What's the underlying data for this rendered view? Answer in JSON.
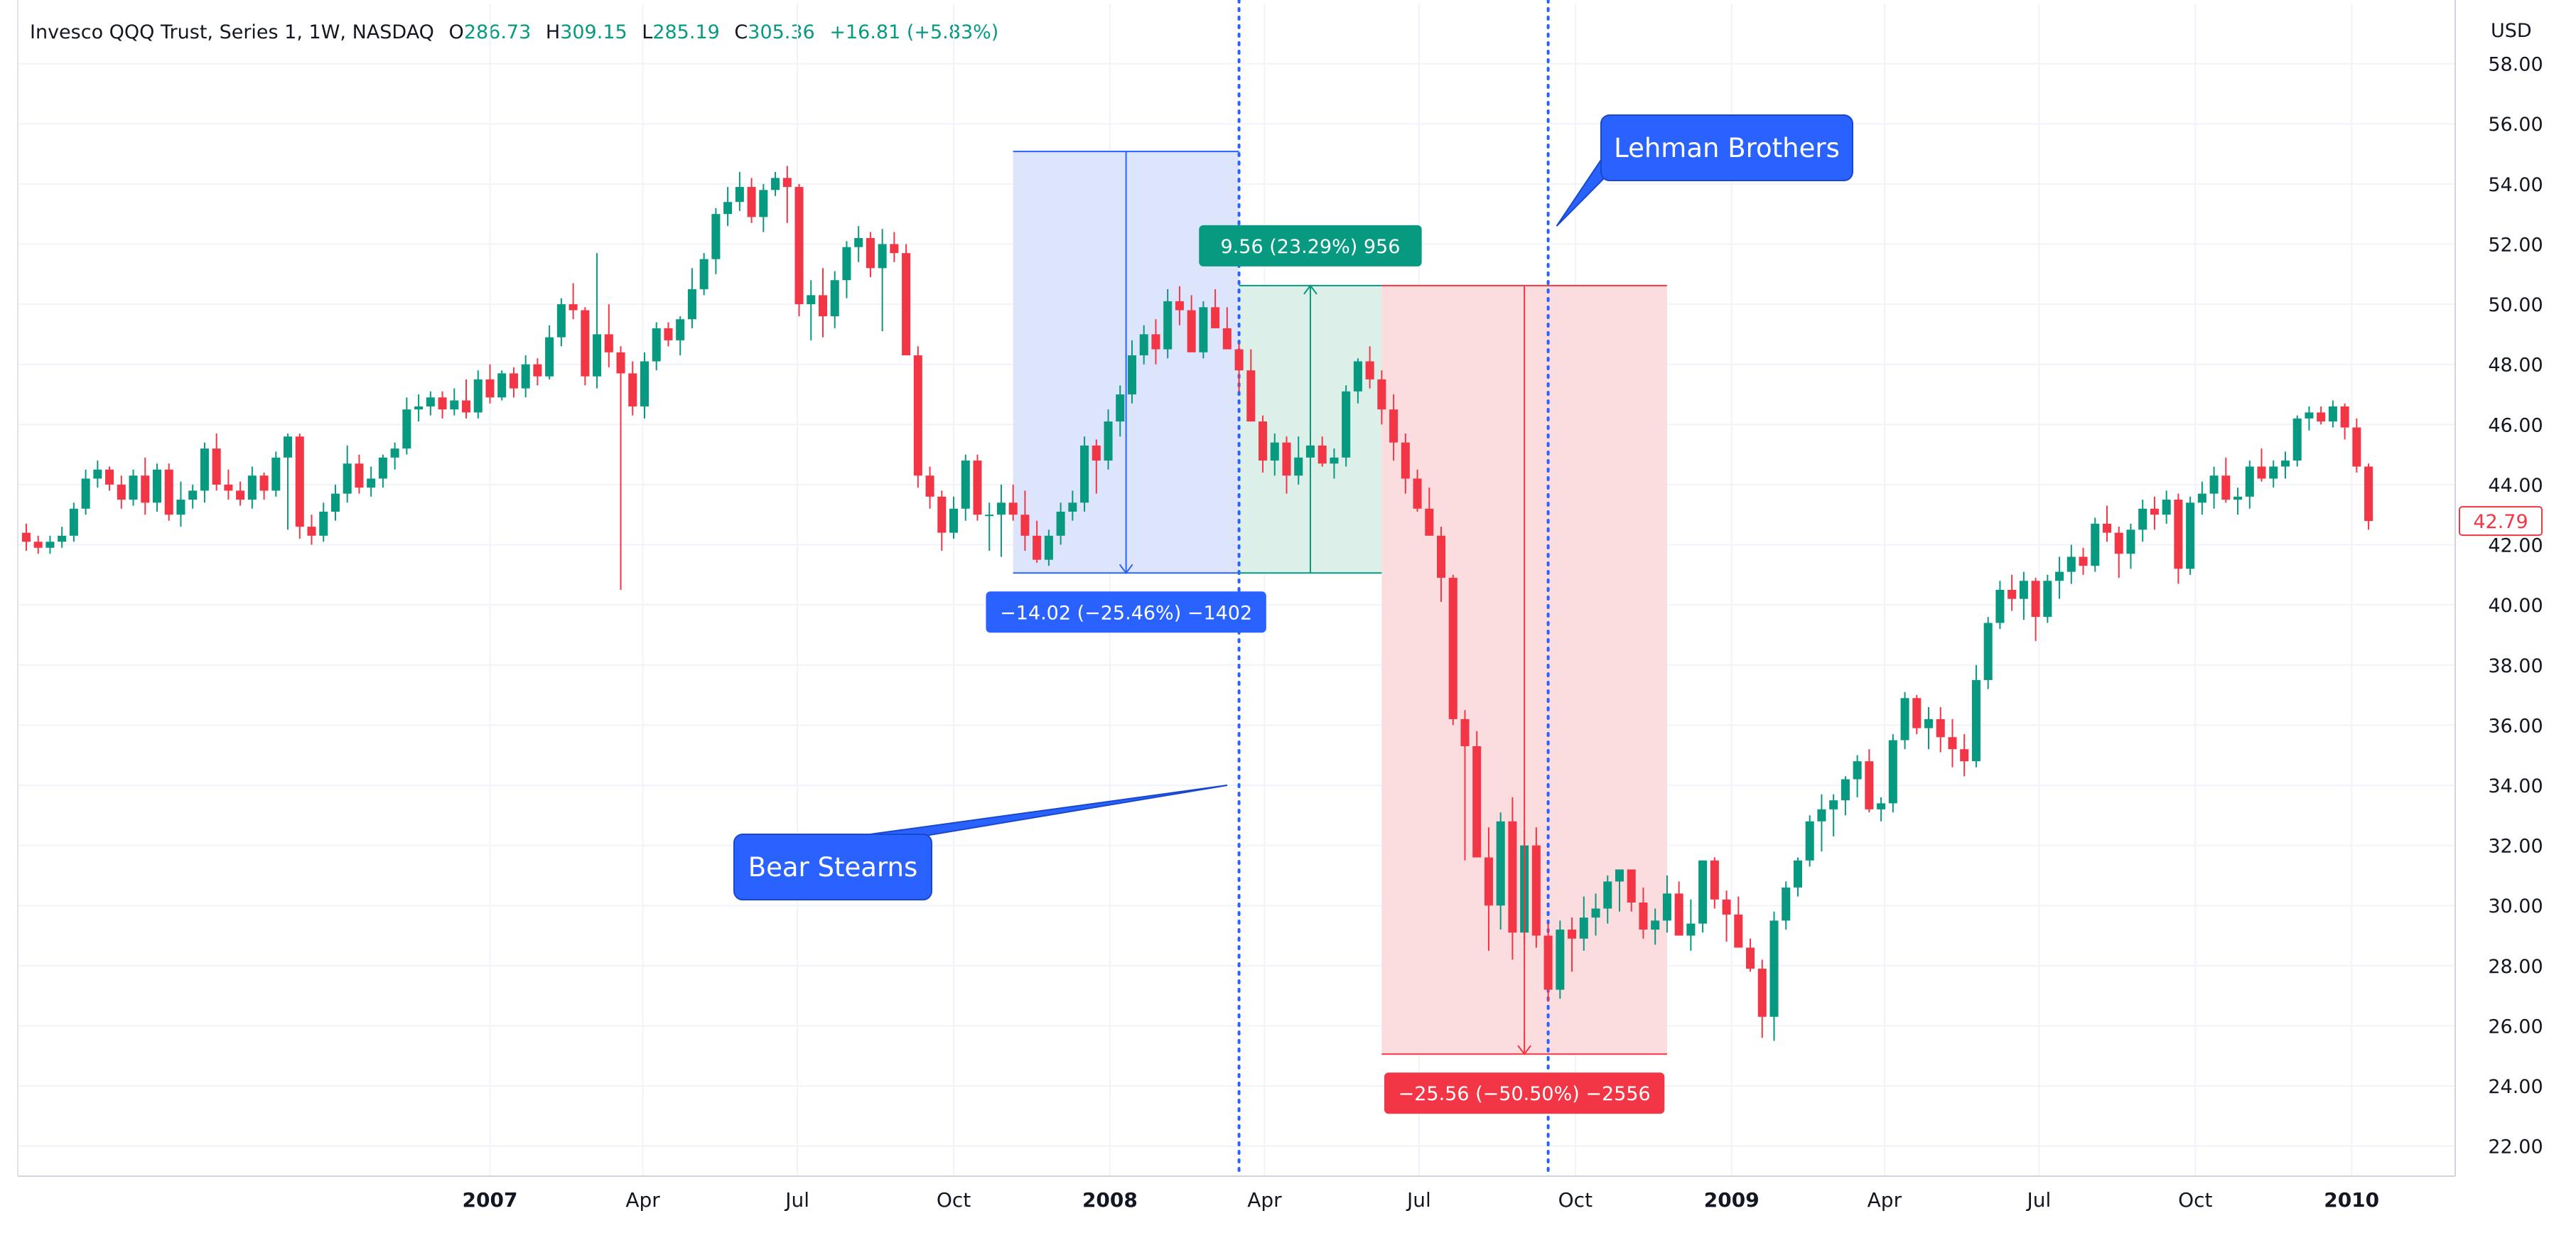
{
  "header": {
    "symbol": "Invesco QQQ Trust, Series 1, 1W, NASDAQ",
    "o_label": "O",
    "o_value": "286.73",
    "h_label": "H",
    "h_value": "309.15",
    "l_label": "L",
    "l_value": "285.19",
    "c_label": "C",
    "c_value": "305.36",
    "change": "+16.81 (+5.83%)"
  },
  "colors": {
    "up": "#089981",
    "down": "#f23645",
    "blue": "#2962ff",
    "blue_fill": "#dde5fd",
    "green_fill": "#dcefe9",
    "red_fill": "#fbdde0",
    "grid": "#f0f3fa",
    "text": "#131722"
  },
  "chart_data": {
    "type": "candlestick",
    "currency": "USD",
    "ylim": [
      21.0,
      60.0
    ],
    "y_ticks": [
      "22.00",
      "24.00",
      "26.00",
      "28.00",
      "30.00",
      "32.00",
      "34.00",
      "36.00",
      "38.00",
      "40.00",
      "42.00",
      "44.00",
      "46.00",
      "48.00",
      "50.00",
      "52.00",
      "54.00",
      "56.00",
      "58.00"
    ],
    "x_ticks": [
      {
        "label": "2007",
        "date": "2007-01-01",
        "bold": true
      },
      {
        "label": "Apr",
        "date": "2007-04-01",
        "bold": false
      },
      {
        "label": "Jul",
        "date": "2007-07-01",
        "bold": false
      },
      {
        "label": "Oct",
        "date": "2007-10-01",
        "bold": false
      },
      {
        "label": "2008",
        "date": "2008-01-01",
        "bold": true
      },
      {
        "label": "Apr",
        "date": "2008-04-01",
        "bold": false
      },
      {
        "label": "Jul",
        "date": "2008-07-01",
        "bold": false
      },
      {
        "label": "Oct",
        "date": "2008-10-01",
        "bold": false
      },
      {
        "label": "2009",
        "date": "2009-01-01",
        "bold": true
      },
      {
        "label": "Apr",
        "date": "2009-04-01",
        "bold": false
      },
      {
        "label": "Jul",
        "date": "2009-07-01",
        "bold": false
      },
      {
        "label": "Oct",
        "date": "2009-10-01",
        "bold": false
      },
      {
        "label": "2010",
        "date": "2010-01-01",
        "bold": true
      }
    ],
    "x_range": [
      "2006-03-29",
      "2010-03-03"
    ],
    "last_price": "42.79",
    "weekly_candles_approx_OHLC": [
      [
        42.4,
        42.7,
        41.8,
        42.1
      ],
      [
        42.1,
        42.3,
        41.7,
        41.9
      ],
      [
        41.9,
        42.3,
        41.7,
        42.1
      ],
      [
        42.1,
        42.6,
        41.9,
        42.3
      ],
      [
        42.3,
        43.4,
        42.1,
        43.2
      ],
      [
        43.2,
        44.5,
        43.0,
        44.2
      ],
      [
        44.2,
        44.8,
        43.9,
        44.5
      ],
      [
        44.5,
        44.6,
        43.8,
        44.0
      ],
      [
        44.0,
        44.3,
        43.2,
        43.5
      ],
      [
        43.5,
        44.5,
        43.3,
        44.3
      ],
      [
        44.3,
        44.9,
        43.0,
        43.4
      ],
      [
        43.4,
        44.7,
        43.1,
        44.5
      ],
      [
        44.5,
        44.7,
        42.8,
        43.0
      ],
      [
        43.0,
        44.1,
        42.6,
        43.5
      ],
      [
        43.5,
        44.0,
        43.2,
        43.8
      ],
      [
        43.8,
        45.4,
        43.4,
        45.2
      ],
      [
        45.2,
        45.7,
        43.8,
        44.0
      ],
      [
        44.0,
        44.5,
        43.5,
        43.8
      ],
      [
        43.8,
        44.1,
        43.3,
        43.5
      ],
      [
        43.5,
        44.6,
        43.2,
        44.3
      ],
      [
        44.3,
        44.4,
        43.5,
        43.8
      ],
      [
        43.8,
        45.1,
        43.6,
        44.9
      ],
      [
        44.9,
        45.7,
        42.5,
        45.6
      ],
      [
        45.6,
        45.7,
        42.2,
        42.6
      ],
      [
        42.6,
        43.0,
        42.0,
        42.3
      ],
      [
        42.3,
        43.4,
        42.1,
        43.1
      ],
      [
        43.1,
        44.0,
        42.8,
        43.7
      ],
      [
        43.7,
        45.3,
        43.4,
        44.7
      ],
      [
        44.7,
        45.0,
        43.7,
        43.9
      ],
      [
        43.9,
        44.6,
        43.6,
        44.2
      ],
      [
        44.2,
        45.0,
        43.9,
        44.9
      ],
      [
        44.9,
        45.4,
        44.5,
        45.2
      ],
      [
        45.2,
        46.9,
        45.0,
        46.5
      ],
      [
        46.5,
        47.0,
        46.1,
        46.6
      ],
      [
        46.6,
        47.1,
        46.3,
        46.9
      ],
      [
        46.9,
        47.1,
        46.2,
        46.5
      ],
      [
        46.5,
        47.2,
        46.3,
        46.8
      ],
      [
        46.8,
        47.5,
        46.2,
        46.4
      ],
      [
        46.4,
        47.8,
        46.2,
        47.5
      ],
      [
        47.5,
        48.0,
        46.7,
        46.9
      ],
      [
        46.9,
        47.8,
        46.8,
        47.7
      ],
      [
        47.7,
        47.9,
        46.9,
        47.2
      ],
      [
        47.2,
        48.3,
        46.9,
        48.0
      ],
      [
        48.0,
        48.2,
        47.3,
        47.6
      ],
      [
        47.6,
        49.3,
        47.5,
        48.9
      ],
      [
        48.9,
        50.2,
        48.6,
        50.0
      ],
      [
        50.0,
        50.7,
        49.5,
        49.8
      ],
      [
        49.8,
        49.9,
        47.3,
        47.6
      ],
      [
        47.6,
        51.7,
        47.2,
        49.0
      ],
      [
        49.0,
        50.0,
        47.9,
        48.4
      ],
      [
        48.4,
        48.6,
        40.5,
        47.7
      ],
      [
        47.7,
        48.1,
        46.3,
        46.6
      ],
      [
        46.6,
        48.4,
        46.2,
        48.1
      ],
      [
        48.1,
        49.4,
        47.8,
        49.2
      ],
      [
        49.2,
        49.4,
        48.6,
        48.8
      ],
      [
        48.8,
        49.6,
        48.3,
        49.5
      ],
      [
        49.5,
        51.2,
        49.2,
        50.5
      ],
      [
        50.5,
        51.7,
        50.3,
        51.5
      ],
      [
        51.5,
        53.2,
        51.0,
        53.0
      ],
      [
        53.0,
        53.9,
        52.6,
        53.4
      ],
      [
        53.4,
        54.4,
        53.1,
        53.9
      ],
      [
        53.9,
        54.2,
        52.7,
        52.9
      ],
      [
        52.9,
        54.0,
        52.4,
        53.8
      ],
      [
        53.8,
        54.4,
        53.6,
        54.2
      ],
      [
        54.2,
        54.6,
        52.7,
        53.9
      ],
      [
        53.9,
        54.0,
        49.6,
        50.0
      ],
      [
        50.0,
        50.8,
        48.8,
        50.3
      ],
      [
        50.3,
        51.2,
        48.9,
        49.6
      ],
      [
        49.6,
        51.1,
        49.2,
        50.8
      ],
      [
        50.8,
        52.1,
        50.2,
        51.9
      ],
      [
        51.9,
        52.6,
        51.4,
        52.2
      ],
      [
        52.2,
        52.4,
        50.9,
        51.2
      ],
      [
        51.2,
        52.5,
        49.1,
        52.0
      ],
      [
        52.0,
        52.4,
        51.4,
        51.7
      ],
      [
        51.7,
        52.0,
        49.2,
        48.3
      ],
      [
        48.3,
        48.6,
        43.9,
        44.3
      ],
      [
        44.3,
        44.6,
        43.2,
        43.6
      ],
      [
        43.6,
        43.8,
        41.8,
        42.4
      ],
      [
        42.4,
        43.6,
        42.2,
        43.2
      ],
      [
        43.2,
        45.0,
        42.8,
        44.8
      ],
      [
        44.8,
        45.0,
        42.8,
        43.0
      ],
      [
        43.0,
        43.4,
        41.8,
        43.0
      ],
      [
        43.0,
        44.0,
        41.6,
        43.4
      ],
      [
        43.4,
        44.0,
        42.8,
        43.0
      ],
      [
        43.0,
        43.8,
        41.8,
        42.3
      ],
      [
        42.3,
        42.8,
        41.4,
        41.5
      ],
      [
        41.5,
        42.5,
        41.3,
        42.3
      ],
      [
        42.3,
        43.4,
        42.0,
        43.1
      ],
      [
        43.1,
        43.8,
        42.8,
        43.4
      ],
      [
        43.4,
        45.6,
        43.1,
        45.3
      ],
      [
        45.3,
        45.5,
        43.7,
        44.8
      ],
      [
        44.8,
        46.5,
        44.5,
        46.1
      ],
      [
        46.1,
        47.3,
        45.6,
        47.0
      ],
      [
        47.0,
        48.8,
        46.7,
        48.3
      ],
      [
        48.3,
        49.3,
        48.0,
        49.0
      ],
      [
        49.0,
        49.5,
        48.0,
        48.5
      ],
      [
        48.5,
        50.5,
        48.2,
        50.1
      ],
      [
        50.1,
        50.6,
        49.3,
        49.8
      ],
      [
        49.8,
        50.3,
        48.6,
        48.4
      ],
      [
        48.4,
        50.1,
        48.2,
        49.9
      ],
      [
        49.9,
        50.5,
        49.2,
        49.2
      ],
      [
        49.2,
        49.9,
        48.8,
        48.5
      ],
      [
        48.5,
        48.7,
        47.1,
        47.8
      ],
      [
        47.8,
        48.5,
        46.3,
        46.1
      ],
      [
        46.1,
        46.3,
        44.4,
        44.8
      ],
      [
        44.8,
        45.7,
        44.3,
        45.4
      ],
      [
        45.4,
        45.6,
        43.7,
        44.3
      ],
      [
        44.3,
        45.6,
        44.0,
        44.9
      ],
      [
        44.9,
        45.6,
        44.3,
        45.3
      ],
      [
        45.3,
        45.6,
        44.6,
        44.7
      ],
      [
        44.7,
        45.2,
        44.2,
        44.9
      ],
      [
        44.9,
        47.3,
        44.6,
        47.1
      ],
      [
        47.1,
        48.2,
        46.7,
        48.1
      ],
      [
        48.1,
        48.6,
        47.2,
        47.5
      ],
      [
        47.5,
        47.8,
        46.0,
        46.5
      ],
      [
        46.5,
        47.0,
        44.8,
        45.4
      ],
      [
        45.4,
        45.7,
        43.7,
        44.2
      ],
      [
        44.2,
        44.5,
        43.1,
        43.2
      ],
      [
        43.2,
        43.9,
        42.5,
        42.3
      ],
      [
        42.3,
        42.6,
        40.1,
        40.9
      ],
      [
        40.9,
        41.0,
        36.0,
        36.2
      ],
      [
        36.2,
        36.5,
        31.5,
        35.3
      ],
      [
        35.3,
        35.8,
        32.1,
        31.6
      ],
      [
        31.6,
        32.6,
        28.5,
        30.0
      ],
      [
        30.0,
        33.1,
        29.2,
        32.8
      ],
      [
        32.8,
        33.6,
        28.2,
        29.1
      ],
      [
        29.1,
        32.5,
        28.7,
        32.0
      ],
      [
        32.0,
        32.6,
        28.6,
        29.0
      ],
      [
        29.0,
        29.4,
        26.8,
        27.2
      ],
      [
        27.2,
        29.5,
        26.9,
        29.2
      ],
      [
        29.2,
        29.6,
        27.8,
        28.9
      ],
      [
        28.9,
        30.3,
        28.5,
        29.6
      ],
      [
        29.6,
        30.4,
        29.0,
        29.9
      ],
      [
        29.9,
        31.0,
        29.4,
        30.8
      ],
      [
        30.8,
        31.2,
        29.8,
        31.2
      ],
      [
        31.2,
        31.2,
        29.8,
        30.1
      ],
      [
        30.1,
        30.6,
        28.9,
        29.2
      ],
      [
        29.2,
        29.9,
        28.7,
        29.5
      ],
      [
        29.5,
        31.0,
        29.1,
        30.4
      ],
      [
        30.4,
        30.8,
        29.4,
        29.0
      ],
      [
        29.0,
        30.2,
        28.5,
        29.4
      ],
      [
        29.4,
        31.5,
        29.1,
        31.5
      ],
      [
        31.5,
        31.6,
        29.9,
        30.2
      ],
      [
        30.2,
        30.5,
        28.8,
        29.7
      ],
      [
        29.7,
        30.3,
        28.7,
        28.6
      ],
      [
        28.6,
        28.9,
        27.8,
        27.9
      ],
      [
        27.9,
        28.2,
        25.6,
        26.3
      ],
      [
        26.3,
        29.8,
        25.5,
        29.5
      ],
      [
        29.5,
        30.8,
        29.2,
        30.6
      ],
      [
        30.6,
        31.6,
        30.3,
        31.5
      ],
      [
        31.5,
        33.0,
        31.3,
        32.8
      ],
      [
        32.8,
        33.7,
        31.8,
        33.2
      ],
      [
        33.2,
        33.7,
        32.3,
        33.5
      ],
      [
        33.5,
        34.3,
        33.0,
        34.2
      ],
      [
        34.2,
        35.0,
        33.6,
        34.8
      ],
      [
        34.8,
        35.2,
        33.1,
        33.2
      ],
      [
        33.2,
        33.6,
        32.8,
        33.4
      ],
      [
        33.4,
        35.7,
        33.1,
        35.5
      ],
      [
        35.5,
        37.1,
        35.2,
        36.9
      ],
      [
        36.9,
        37.0,
        35.7,
        35.9
      ],
      [
        35.9,
        36.6,
        35.2,
        36.2
      ],
      [
        36.2,
        36.6,
        35.1,
        35.6
      ],
      [
        35.6,
        36.2,
        34.6,
        35.2
      ],
      [
        35.2,
        35.7,
        34.3,
        34.8
      ],
      [
        34.8,
        38.0,
        34.6,
        37.5
      ],
      [
        37.5,
        39.6,
        37.2,
        39.4
      ],
      [
        39.4,
        40.8,
        39.2,
        40.5
      ],
      [
        40.5,
        41.0,
        39.8,
        40.2
      ],
      [
        40.2,
        41.1,
        39.5,
        40.8
      ],
      [
        40.8,
        40.9,
        38.8,
        39.6
      ],
      [
        39.6,
        41.0,
        39.4,
        40.8
      ],
      [
        40.8,
        41.6,
        40.2,
        41.1
      ],
      [
        41.1,
        42.0,
        40.7,
        41.6
      ],
      [
        41.6,
        41.9,
        41.0,
        41.3
      ],
      [
        41.3,
        42.9,
        41.1,
        42.7
      ],
      [
        42.7,
        43.3,
        42.1,
        42.4
      ],
      [
        42.4,
        42.6,
        40.9,
        41.7
      ],
      [
        41.7,
        42.7,
        41.2,
        42.5
      ],
      [
        42.5,
        43.5,
        42.1,
        43.2
      ],
      [
        43.2,
        43.6,
        42.5,
        43.0
      ],
      [
        43.0,
        43.8,
        42.7,
        43.5
      ],
      [
        43.5,
        43.7,
        40.7,
        41.2
      ],
      [
        41.2,
        43.6,
        41.0,
        43.4
      ],
      [
        43.4,
        44.1,
        43.0,
        43.7
      ],
      [
        43.7,
        44.6,
        43.2,
        44.3
      ],
      [
        44.3,
        44.9,
        43.4,
        43.5
      ],
      [
        43.5,
        43.9,
        43.0,
        43.6
      ],
      [
        43.6,
        44.8,
        43.2,
        44.6
      ],
      [
        44.6,
        45.2,
        44.1,
        44.2
      ],
      [
        44.2,
        44.8,
        43.9,
        44.6
      ],
      [
        44.6,
        45.1,
        44.2,
        44.8
      ],
      [
        44.8,
        46.3,
        44.6,
        46.2
      ],
      [
        46.2,
        46.6,
        45.8,
        46.4
      ],
      [
        46.4,
        46.6,
        46.0,
        46.1
      ],
      [
        46.1,
        46.8,
        45.9,
        46.6
      ],
      [
        46.6,
        46.7,
        45.5,
        45.9
      ],
      [
        45.9,
        46.2,
        44.4,
        44.6
      ],
      [
        44.6,
        44.7,
        42.5,
        42.79
      ]
    ],
    "measure_blue": {
      "label": "−14.02 (−25.46%) −1402",
      "top": 55.08,
      "bottom": 41.06,
      "start": "2007-11-05",
      "end": "2008-03-17"
    },
    "measure_green": {
      "label": "9.56 (23.29%) 956",
      "top": 50.62,
      "bottom": 41.06,
      "start": "2008-03-17",
      "end": "2008-06-09"
    },
    "measure_red": {
      "label": "−25.56 (−50.50%) −2556",
      "top": 50.62,
      "bottom": 25.06,
      "start": "2008-06-09",
      "end": "2008-11-24"
    },
    "vlines": [
      {
        "date": "2008-03-17"
      },
      {
        "date": "2008-09-15"
      }
    ],
    "callouts": [
      {
        "text": "Bear Stearns",
        "target_date": "2008-03-10",
        "target_price": 34.0
      },
      {
        "text": "Lehman Brothers",
        "target_date": "2008-09-20",
        "target_price": 52.6
      }
    ]
  }
}
